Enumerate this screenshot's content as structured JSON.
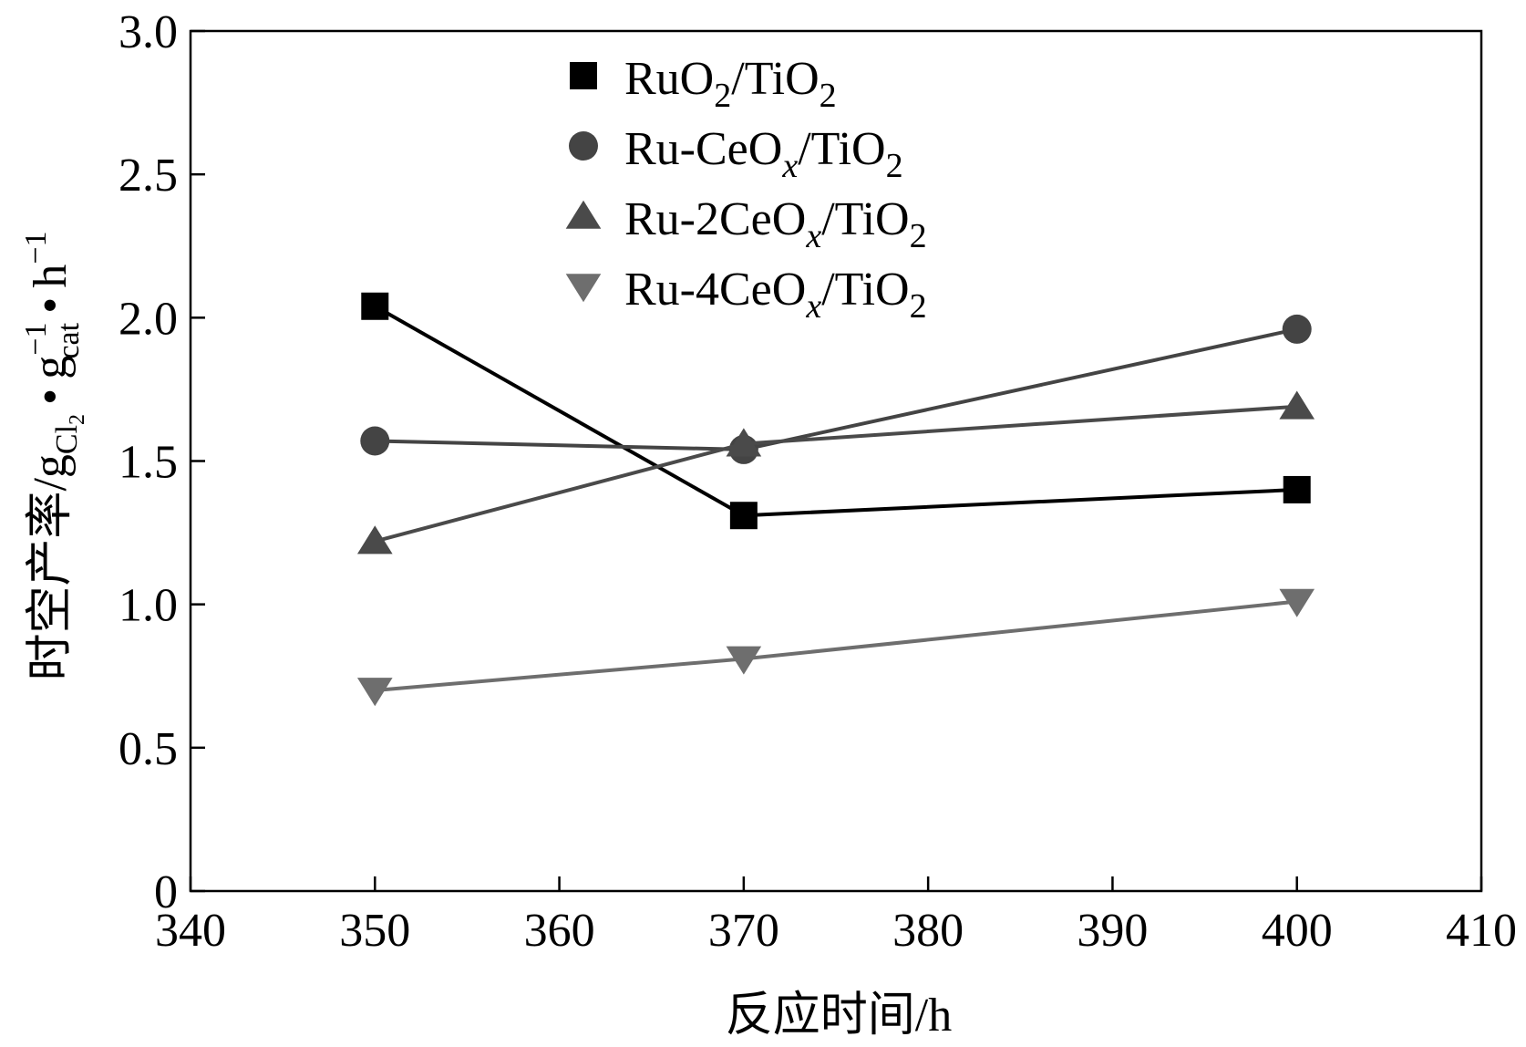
{
  "chart_data": {
    "type": "line",
    "title": "",
    "xlabel": "反应时间/h",
    "ylabel_main": "时空产率/g",
    "ylabel_parts": {
      "sub1": "Cl",
      "sub1_sub": "2",
      "dot": "•",
      "g": "g",
      "sup_neg1": "−1",
      "sub_cat": "cat",
      "h": "h"
    },
    "xlim": [
      340,
      410
    ],
    "ylim": [
      0,
      3.0
    ],
    "xticks": [
      340,
      350,
      360,
      370,
      380,
      390,
      400,
      410
    ],
    "yticks": [
      0,
      0.5,
      1.0,
      1.5,
      2.0,
      2.5,
      3.0
    ],
    "ytick_labels": [
      "0",
      "0.5",
      "1.0",
      "1.5",
      "2.0",
      "2.5",
      "3.0"
    ],
    "grid": false,
    "legend_position": "top-center",
    "series": [
      {
        "name": "RuO2/TiO2",
        "legend": {
          "base": "RuO",
          "sub1": "2",
          "mid": "/TiO",
          "sub2": "2",
          "italic": ""
        },
        "marker": "square",
        "color": "#000000",
        "x": [
          350,
          370,
          400
        ],
        "y": [
          2.04,
          1.31,
          1.4
        ]
      },
      {
        "name": "Ru-CeOx/TiO2",
        "legend": {
          "base": "Ru-CeO",
          "sub1": "x",
          "mid": "/TiO",
          "sub2": "2",
          "italic": "x"
        },
        "marker": "circle",
        "color": "#444444",
        "x": [
          350,
          370,
          400
        ],
        "y": [
          1.57,
          1.54,
          1.96
        ]
      },
      {
        "name": "Ru-2CeOx/TiO2",
        "legend": {
          "base": "Ru-2CeO",
          "sub1": "x",
          "mid": "/TiO",
          "sub2": "2",
          "italic": "x"
        },
        "marker": "triangle-up",
        "color": "#4a4a4a",
        "x": [
          350,
          370,
          400
        ],
        "y": [
          1.22,
          1.56,
          1.69
        ]
      },
      {
        "name": "Ru-4CeOx/TiO2",
        "legend": {
          "base": "Ru-4CeO",
          "sub1": "x",
          "mid": "/TiO",
          "sub2": "2",
          "italic": "x"
        },
        "marker": "triangle-down",
        "color": "#6e6e6e",
        "x": [
          350,
          370,
          400
        ],
        "y": [
          0.7,
          0.81,
          1.01
        ]
      }
    ]
  }
}
